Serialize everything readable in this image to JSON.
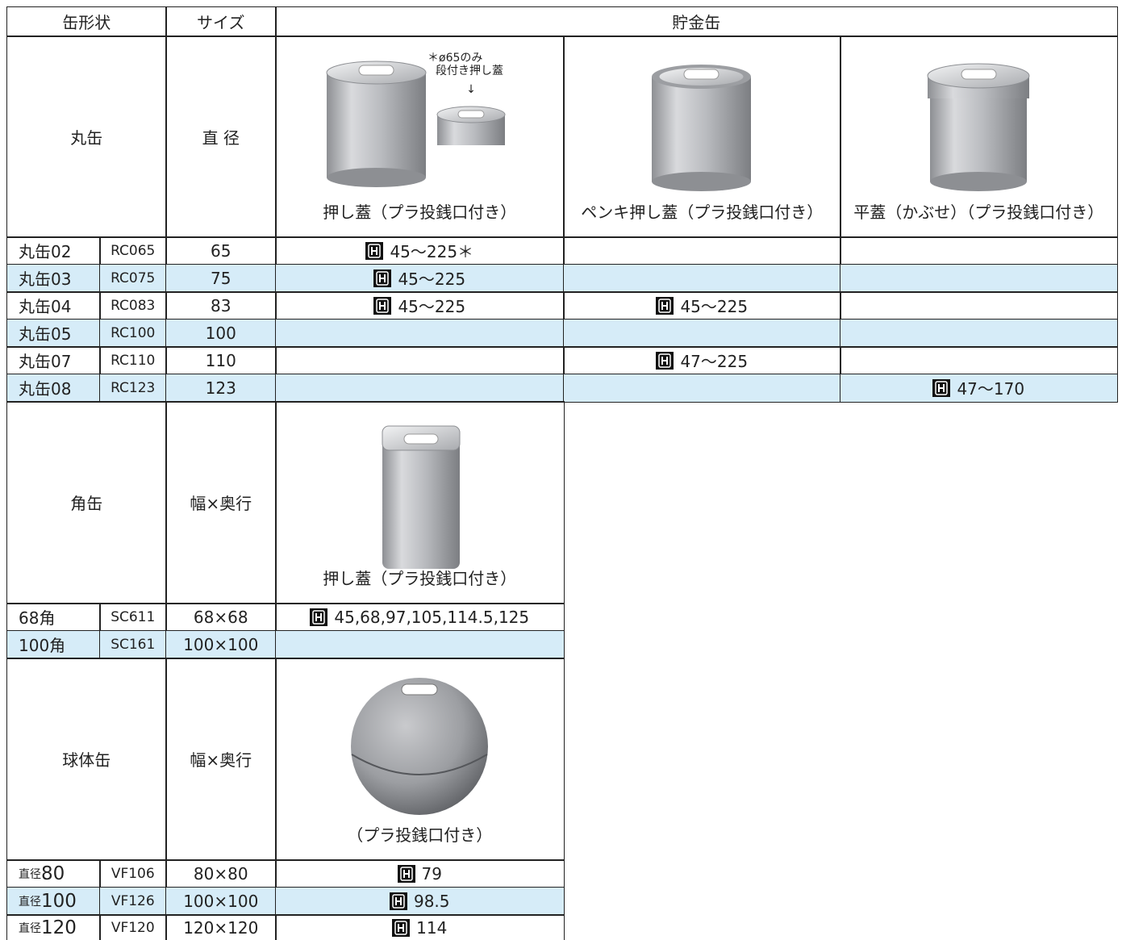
{
  "header": {
    "shape": "缶形状",
    "size": "サイズ",
    "category": "貯金缶"
  },
  "sections": [
    {
      "shape": "丸缶",
      "size_label": "直 径",
      "types": [
        {
          "label": "押し蓋（プラ投銭口付き）",
          "note": [
            "＊ø65のみ",
            "段付き押し蓋"
          ]
        },
        {
          "label": "ペンキ押し蓋（プラ投銭口付き）"
        },
        {
          "label": "平蓋（かぶせ）（プラ投銭口付き）"
        }
      ],
      "rows": [
        {
          "name": "丸缶02",
          "code": "RC065",
          "size": "65",
          "cells": [
            "45〜225＊",
            null,
            null
          ]
        },
        {
          "name": "丸缶03",
          "code": "RC075",
          "size": "75",
          "cells": [
            "45〜225",
            null,
            null
          ]
        },
        {
          "name": "丸缶04",
          "code": "RC083",
          "size": "83",
          "cells": [
            "45〜225",
            "45〜225",
            null
          ]
        },
        {
          "name": "丸缶05",
          "code": "RC100",
          "size": "100",
          "cells": [
            null,
            null,
            null
          ]
        },
        {
          "name": "丸缶07",
          "code": "RC110",
          "size": "110",
          "cells": [
            null,
            "47〜225",
            null
          ]
        },
        {
          "name": "丸缶08",
          "code": "RC123",
          "size": "123",
          "cells": [
            null,
            null,
            "47〜170"
          ]
        }
      ]
    },
    {
      "shape": "角缶",
      "size_label": "幅×奥行",
      "types": [
        {
          "label": "押し蓋（プラ投銭口付き）"
        }
      ],
      "rows": [
        {
          "name": "68角",
          "code": "SC611",
          "size": "68×68",
          "cells": [
            "45,68,97,105,114.5,125"
          ]
        },
        {
          "name": "100角",
          "code": "SC161",
          "size": "100×100",
          "cells": [
            null
          ]
        }
      ]
    },
    {
      "shape": "球体缶",
      "size_label": "幅×奥行",
      "types": [
        {
          "label": "（プラ投銭口付き）"
        }
      ],
      "rows": [
        {
          "name_prefix": "直径",
          "name": "80",
          "code": "VF106",
          "size": "80×80",
          "cells": [
            "79"
          ]
        },
        {
          "name_prefix": "直径",
          "name": "100",
          "code": "VF126",
          "size": "100×100",
          "cells": [
            "98.5"
          ]
        },
        {
          "name_prefix": "直径",
          "name": "120",
          "code": "VF120",
          "size": "120×120",
          "cells": [
            "114"
          ]
        }
      ]
    }
  ]
}
